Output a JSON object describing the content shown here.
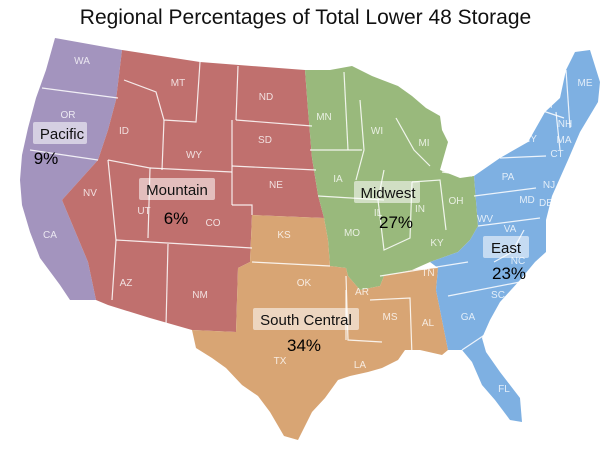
{
  "title": "Regional Percentages of Total Lower 48 Storage",
  "colors": {
    "pacific": "#a394be",
    "mountain": "#c0706e",
    "midwest": "#99b97c",
    "south_central": "#d8a574",
    "east": "#7eb0e2"
  },
  "regions": [
    {
      "id": "pacific",
      "label": "Pacific",
      "percent": "9%"
    },
    {
      "id": "mountain",
      "label": "Mountain",
      "percent": "6%"
    },
    {
      "id": "midwest",
      "label": "Midwest",
      "percent": "27%"
    },
    {
      "id": "south_central",
      "label": "South Central",
      "percent": "34%"
    },
    {
      "id": "east",
      "label": "East",
      "percent": "23%"
    }
  ],
  "states": {
    "pacific": [
      "WA",
      "OR",
      "CA"
    ],
    "mountain": [
      "MT",
      "ID",
      "WY",
      "NV",
      "UT",
      "CO",
      "AZ",
      "NM",
      "ND",
      "SD",
      "NE"
    ],
    "midwest": [
      "MN",
      "WI",
      "MI",
      "IA",
      "IL",
      "IN",
      "MO",
      "KY",
      "TN",
      "OH"
    ],
    "south_central": [
      "KS",
      "OK",
      "TX",
      "AR",
      "LA",
      "MS",
      "AL"
    ],
    "east": [
      "ME",
      "VT",
      "NH",
      "NY",
      "MA",
      "CT",
      "RI",
      "PA",
      "NJ",
      "MD",
      "DE",
      "WV",
      "VA",
      "NC",
      "SC",
      "GA",
      "FL"
    ]
  }
}
